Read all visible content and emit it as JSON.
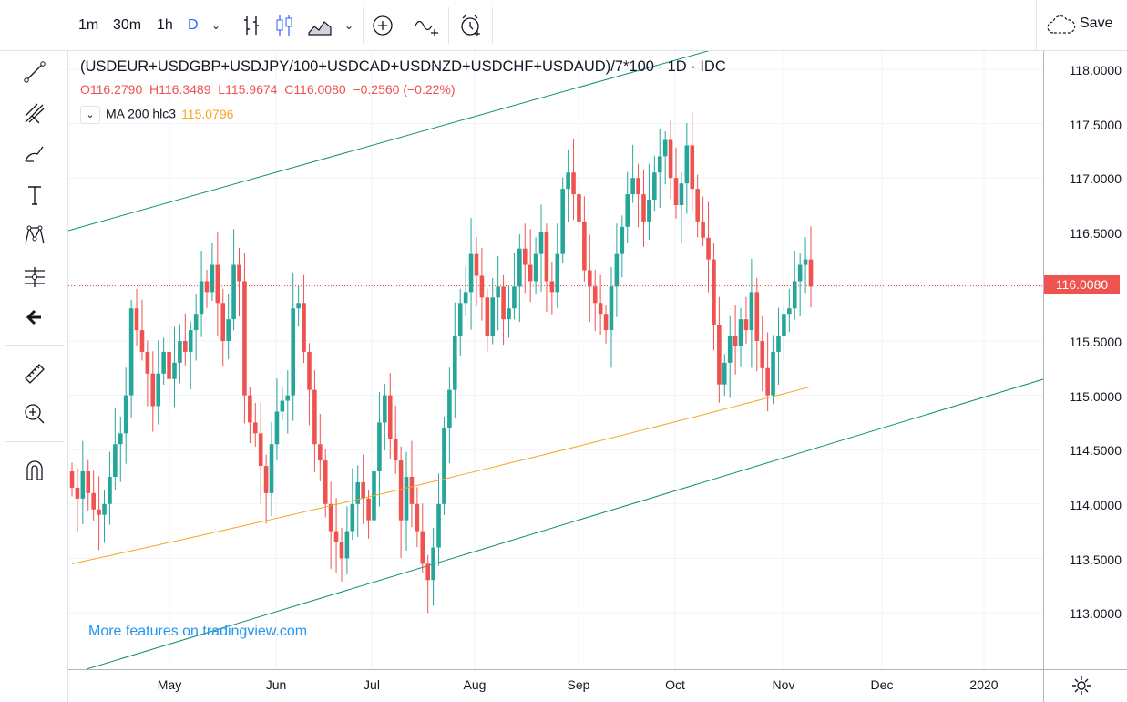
{
  "toolbar": {
    "intervals": [
      "1m",
      "30m",
      "1h",
      "D"
    ],
    "active_interval": "D",
    "save_label": "Save"
  },
  "legend": {
    "title": "(USDEUR+USDGBP+USDJPY/100+USDCAD+USDNZD+USDCHF+USDAUD)/7*100 · 1D · IDC",
    "open": "O116.2790",
    "high": "H116.3489",
    "low": "L115.9674",
    "close": "C116.0080",
    "change": "−0.2560 (−0.22%)",
    "ma_label": "MA 200 hlc3",
    "ma_value": "115.0796"
  },
  "price_axis": [
    "118.0000",
    "117.5000",
    "117.0000",
    "116.5000",
    "116.0000",
    "115.5000",
    "115.0000",
    "114.5000",
    "114.0000",
    "113.5000",
    "113.0000"
  ],
  "current_price": "116.0080",
  "time_axis": [
    "May",
    "Jun",
    "Jul",
    "Aug",
    "Sep",
    "Oct",
    "Nov",
    "Dec",
    "2020"
  ],
  "link_text": "More features on tradingview.com",
  "colors": {
    "up": "#26a69a",
    "down": "#ef5350",
    "ma": "#f5a623",
    "channel": "#138d75",
    "accent": "#2962ff"
  },
  "chart_data": {
    "type": "candlestick",
    "ylim": [
      112.5,
      118.3
    ],
    "ma_start": 113.45,
    "ma_end": 115.08,
    "closes": [
      114.15,
      114.05,
      114.3,
      114.1,
      113.95,
      113.9,
      114.0,
      114.25,
      114.55,
      114.65,
      115.0,
      115.8,
      115.6,
      115.4,
      115.2,
      114.9,
      115.2,
      115.4,
      115.15,
      115.3,
      115.5,
      115.4,
      115.6,
      115.75,
      116.05,
      115.95,
      116.2,
      115.85,
      115.5,
      115.7,
      116.2,
      116.05,
      115.0,
      114.75,
      114.65,
      114.35,
      114.1,
      114.55,
      114.85,
      114.95,
      115.0,
      115.8,
      115.85,
      115.4,
      115.05,
      114.55,
      114.4,
      114.0,
      113.75,
      113.65,
      113.5,
      113.75,
      114.0,
      114.2,
      114.05,
      113.85,
      114.3,
      114.75,
      115.0,
      114.6,
      114.4,
      113.85,
      114.25,
      114.0,
      113.75,
      113.45,
      113.3,
      113.6,
      114.0,
      114.7,
      115.05,
      115.55,
      115.85,
      115.95,
      116.3,
      116.1,
      115.9,
      115.55,
      115.9,
      116.0,
      115.7,
      115.8,
      116.0,
      116.35,
      116.2,
      116.05,
      116.3,
      116.5,
      116.05,
      115.95,
      116.3,
      116.9,
      117.05,
      116.85,
      116.6,
      116.15,
      116.0,
      115.85,
      115.75,
      115.6,
      116.0,
      116.3,
      116.55,
      116.85,
      117.0,
      116.85,
      116.6,
      116.8,
      117.05,
      117.2,
      117.35,
      117.0,
      116.75,
      116.95,
      117.3,
      116.9,
      116.6,
      116.45,
      116.25,
      115.65,
      115.1,
      115.3,
      115.55,
      115.45,
      115.7,
      115.6,
      115.95,
      115.5,
      115.25,
      115.0,
      115.4,
      115.55,
      115.75,
      115.8,
      116.05,
      116.2,
      116.25,
      116.0
    ]
  }
}
